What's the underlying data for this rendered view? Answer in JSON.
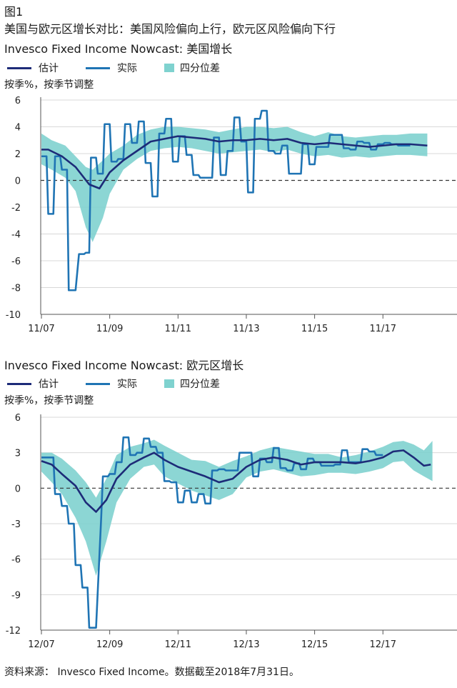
{
  "figure_label": "图1",
  "figure_title": "美国与欧元区增长对比：美国风险偏向上行，欧元区风险偏向下行",
  "colors": {
    "estimate": "#1d2b78",
    "actual": "#1f74b4",
    "band": "#7fd2cf",
    "grid": "#d8d8d8",
    "zero": "#333333"
  },
  "legend": {
    "estimate": "估计",
    "actual": "实际",
    "band": "四分位差"
  },
  "source": "资料来源： Invesco Fixed Income。数据截至2018年7月31日。",
  "chart_data": [
    {
      "type": "line",
      "title": "Invesco Fixed Income Nowcast: 美国增长",
      "ylabel": "按季%，按季节调整",
      "ylim": [
        -10,
        6
      ],
      "yticks": [
        6,
        4,
        2,
        0,
        -2,
        -4,
        -6,
        -8,
        -10
      ],
      "xlim": [
        2007.0,
        2018.5
      ],
      "xticks": [
        {
          "x": 2007.0,
          "label": "11/07"
        },
        {
          "x": 2009.0,
          "label": "11/09"
        },
        {
          "x": 2011.0,
          "label": "11/11"
        },
        {
          "x": 2013.0,
          "label": "11/13"
        },
        {
          "x": 2015.0,
          "label": "11/15"
        },
        {
          "x": 2017.0,
          "label": "11/17"
        }
      ],
      "series": [
        {
          "name": "估计",
          "key": "estimate",
          "x": [
            2007.0,
            2007.2,
            2007.6,
            2008.0,
            2008.4,
            2008.7,
            2009.0,
            2009.4,
            2009.8,
            2010.2,
            2010.6,
            2011.0,
            2011.4,
            2011.8,
            2012.2,
            2012.6,
            2013.0,
            2013.4,
            2013.8,
            2014.2,
            2014.6,
            2015.0,
            2015.4,
            2015.8,
            2016.2,
            2016.6,
            2017.0,
            2017.4,
            2017.8,
            2018.3
          ],
          "y": [
            2.3,
            2.3,
            1.8,
            1.0,
            -0.3,
            -0.6,
            0.6,
            1.5,
            2.2,
            2.9,
            3.1,
            3.3,
            3.2,
            3.1,
            2.9,
            3.0,
            3.0,
            3.1,
            3.0,
            3.1,
            2.8,
            2.7,
            2.8,
            2.7,
            2.6,
            2.5,
            2.6,
            2.7,
            2.7,
            2.6
          ]
        },
        {
          "name": "实际",
          "key": "actual",
          "x": [
            2007.0,
            2007.15,
            2007.2,
            2007.35,
            2007.4,
            2007.55,
            2007.6,
            2007.75,
            2007.8,
            2008.0,
            2008.1,
            2008.25,
            2008.3,
            2008.4,
            2008.45,
            2008.6,
            2008.65,
            2008.8,
            2008.85,
            2009.0,
            2009.05,
            2009.2,
            2009.25,
            2009.4,
            2009.45,
            2009.6,
            2009.65,
            2009.8,
            2009.85,
            2010.0,
            2010.05,
            2010.2,
            2010.25,
            2010.4,
            2010.45,
            2010.6,
            2010.65,
            2010.8,
            2010.85,
            2011.0,
            2011.05,
            2011.2,
            2011.25,
            2011.4,
            2011.45,
            2011.6,
            2011.65,
            2011.8,
            2011.85,
            2012.0,
            2012.05,
            2012.2,
            2012.25,
            2012.4,
            2012.45,
            2012.6,
            2012.65,
            2012.8,
            2012.85,
            2013.0,
            2013.05,
            2013.2,
            2013.25,
            2013.4,
            2013.45,
            2013.6,
            2013.65,
            2013.8,
            2013.85,
            2014.0,
            2014.05,
            2014.2,
            2014.25,
            2014.4,
            2014.45,
            2014.6,
            2014.65,
            2014.8,
            2014.85,
            2015.0,
            2015.05,
            2015.2,
            2015.25,
            2015.4,
            2015.45,
            2015.6,
            2015.65,
            2015.8,
            2015.85,
            2016.0,
            2016.05,
            2016.2,
            2016.25,
            2016.4,
            2016.45,
            2016.6,
            2016.65,
            2016.8,
            2016.85,
            2017.0,
            2017.05,
            2017.2,
            2017.25,
            2017.4,
            2017.45,
            2017.6,
            2017.65,
            2017.8
          ],
          "y": [
            1.8,
            1.8,
            -2.5,
            -2.5,
            1.8,
            1.8,
            0.8,
            0.8,
            -8.2,
            -8.2,
            -5.5,
            -5.5,
            -5.4,
            -5.4,
            1.7,
            1.7,
            0.5,
            0.5,
            4.2,
            4.2,
            1.4,
            1.4,
            1.6,
            1.6,
            4.2,
            4.2,
            2.8,
            2.8,
            4.4,
            4.4,
            1.3,
            1.3,
            -1.2,
            -1.2,
            3.5,
            3.5,
            4.6,
            4.6,
            1.4,
            1.4,
            3.3,
            3.3,
            1.9,
            1.9,
            0.4,
            0.4,
            0.2,
            0.2,
            0.2,
            0.2,
            3.2,
            3.2,
            0.4,
            0.4,
            2.2,
            2.2,
            4.7,
            4.7,
            2.9,
            2.9,
            -0.9,
            -0.9,
            4.6,
            4.6,
            5.2,
            5.2,
            2.2,
            2.2,
            2.0,
            2.0,
            2.6,
            2.6,
            0.5,
            0.5,
            0.5,
            0.5,
            2.7,
            2.7,
            1.2,
            1.2,
            2.5,
            2.5,
            2.5,
            2.5,
            3.4,
            3.4,
            3.4,
            3.4,
            2.4,
            2.4,
            2.3,
            2.3,
            2.9,
            2.9,
            2.8,
            2.8,
            2.3,
            2.3,
            2.7,
            2.7,
            2.8,
            2.8,
            2.7,
            2.7,
            2.6,
            2.6,
            2.6,
            2.6
          ]
        },
        {
          "name": "四分位差",
          "key": "band",
          "x": [
            2007.0,
            2007.3,
            2007.7,
            2008.0,
            2008.3,
            2008.5,
            2008.8,
            2009.0,
            2009.4,
            2009.8,
            2010.2,
            2010.6,
            2011.0,
            2011.4,
            2011.8,
            2012.2,
            2012.6,
            2013.0,
            2013.4,
            2013.8,
            2014.2,
            2014.6,
            2015.0,
            2015.4,
            2015.8,
            2016.2,
            2016.6,
            2017.0,
            2017.4,
            2017.8,
            2018.3
          ],
          "upper": [
            3.5,
            3.0,
            2.6,
            1.8,
            1.0,
            0.8,
            1.5,
            2.0,
            2.6,
            3.4,
            3.8,
            4.0,
            4.0,
            3.9,
            3.8,
            3.6,
            3.8,
            4.0,
            4.0,
            3.9,
            4.0,
            3.6,
            3.3,
            3.6,
            3.3,
            3.2,
            3.3,
            3.4,
            3.4,
            3.5,
            3.5
          ],
          "lower": [
            1.2,
            0.8,
            0.2,
            -0.8,
            -3.5,
            -4.6,
            -2.8,
            -1.0,
            0.8,
            1.6,
            2.2,
            2.4,
            2.5,
            2.4,
            2.2,
            2.0,
            2.1,
            2.2,
            2.3,
            2.1,
            2.3,
            2.0,
            1.8,
            1.9,
            1.7,
            1.8,
            1.7,
            1.8,
            1.9,
            1.9,
            1.8
          ]
        }
      ]
    },
    {
      "type": "line",
      "title": "Invesco Fixed Income Nowcast: 欧元区增长",
      "ylabel": "按季%，按季节调整",
      "ylim": [
        -12,
        6
      ],
      "yticks": [
        6,
        3,
        0,
        -3,
        -6,
        -9,
        -12
      ],
      "xlim": [
        2007.0,
        2018.5
      ],
      "xticks": [
        {
          "x": 2007.0,
          "label": "12/07"
        },
        {
          "x": 2009.0,
          "label": "12/09"
        },
        {
          "x": 2011.0,
          "label": "12/11"
        },
        {
          "x": 2013.0,
          "label": "12/13"
        },
        {
          "x": 2015.0,
          "label": "12/15"
        },
        {
          "x": 2017.0,
          "label": "12/17"
        }
      ],
      "series": [
        {
          "name": "估计",
          "key": "estimate",
          "x": [
            2007.0,
            2007.3,
            2007.6,
            2008.0,
            2008.3,
            2008.6,
            2008.9,
            2009.2,
            2009.6,
            2010.0,
            2010.3,
            2010.6,
            2011.0,
            2011.4,
            2011.8,
            2012.2,
            2012.6,
            2013.0,
            2013.4,
            2013.8,
            2014.2,
            2014.6,
            2015.0,
            2015.4,
            2015.8,
            2016.2,
            2016.6,
            2017.0,
            2017.3,
            2017.6,
            2017.9,
            2018.2,
            2018.4
          ],
          "y": [
            2.3,
            2.0,
            1.2,
            0.2,
            -1.2,
            -2.0,
            -1.0,
            0.8,
            2.0,
            2.6,
            3.0,
            2.4,
            1.8,
            1.4,
            1.0,
            0.5,
            0.8,
            1.8,
            2.4,
            2.6,
            2.4,
            2.0,
            2.2,
            2.2,
            2.2,
            2.1,
            2.3,
            2.6,
            3.1,
            3.2,
            2.6,
            1.9,
            2.0
          ]
        },
        {
          "name": "实际",
          "key": "actual",
          "x": [
            2007.0,
            2007.15,
            2007.2,
            2007.35,
            2007.4,
            2007.55,
            2007.6,
            2007.75,
            2007.8,
            2007.95,
            2008.0,
            2008.15,
            2008.2,
            2008.35,
            2008.4,
            2008.55,
            2008.6,
            2008.75,
            2008.8,
            2008.95,
            2009.0,
            2009.15,
            2009.2,
            2009.35,
            2009.4,
            2009.55,
            2009.6,
            2009.75,
            2009.8,
            2009.95,
            2010.0,
            2010.15,
            2010.2,
            2010.35,
            2010.4,
            2010.55,
            2010.6,
            2010.75,
            2010.8,
            2010.95,
            2011.0,
            2011.15,
            2011.2,
            2011.35,
            2011.4,
            2011.55,
            2011.6,
            2011.75,
            2011.8,
            2011.95,
            2012.0,
            2012.15,
            2012.2,
            2012.35,
            2012.4,
            2012.55,
            2012.6,
            2012.75,
            2012.8,
            2012.95,
            2013.0,
            2013.15,
            2013.2,
            2013.35,
            2013.4,
            2013.55,
            2013.6,
            2013.75,
            2013.8,
            2013.95,
            2014.0,
            2014.15,
            2014.2,
            2014.35,
            2014.4,
            2014.55,
            2014.6,
            2014.75,
            2014.8,
            2014.95,
            2015.0,
            2015.15,
            2015.2,
            2015.35,
            2015.4,
            2015.55,
            2015.6,
            2015.75,
            2015.8,
            2015.95,
            2016.0,
            2016.15,
            2016.2,
            2016.35,
            2016.4,
            2016.55,
            2016.6,
            2016.75,
            2016.8,
            2016.95,
            2017.0
          ],
          "y": [
            2.6,
            2.6,
            2.6,
            2.6,
            -0.5,
            -0.5,
            -1.5,
            -1.5,
            -3.0,
            -3.0,
            -6.5,
            -6.5,
            -8.4,
            -8.4,
            -11.8,
            -11.8,
            -11.8,
            -2.5,
            1.0,
            1.0,
            1.2,
            1.2,
            2.2,
            2.2,
            4.3,
            4.3,
            2.8,
            2.8,
            3.0,
            3.0,
            4.2,
            4.2,
            3.5,
            3.5,
            3.0,
            3.0,
            0.6,
            0.6,
            0.5,
            0.5,
            -1.2,
            -1.2,
            -0.2,
            -0.2,
            -1.2,
            -1.2,
            -0.5,
            -0.5,
            -1.3,
            -1.3,
            1.5,
            1.5,
            1.6,
            1.6,
            1.5,
            1.5,
            1.5,
            1.5,
            3.0,
            3.0,
            3.0,
            3.0,
            1.0,
            1.0,
            2.5,
            2.5,
            2.2,
            2.2,
            3.4,
            3.4,
            1.7,
            1.7,
            1.5,
            1.5,
            2.1,
            2.1,
            1.6,
            1.6,
            2.5,
            2.5,
            2.2,
            2.2,
            1.9,
            1.9,
            1.9,
            1.9,
            2.0,
            2.0,
            3.2,
            3.2,
            2.2,
            2.2,
            2.2,
            2.2,
            3.3,
            3.3,
            3.1,
            3.1,
            2.8,
            2.8,
            2.8
          ]
        },
        {
          "name": "四分位差",
          "key": "band",
          "x": [
            2007.0,
            2007.3,
            2007.6,
            2008.0,
            2008.3,
            2008.6,
            2008.9,
            2009.2,
            2009.6,
            2010.0,
            2010.3,
            2010.6,
            2011.0,
            2011.4,
            2011.8,
            2012.2,
            2012.6,
            2013.0,
            2013.4,
            2013.8,
            2014.2,
            2014.6,
            2015.0,
            2015.4,
            2015.8,
            2016.2,
            2016.6,
            2017.0,
            2017.3,
            2017.6,
            2017.9,
            2018.2,
            2018.45
          ],
          "upper": [
            3.0,
            3.0,
            2.5,
            1.5,
            0.5,
            -0.8,
            0.8,
            2.8,
            3.5,
            3.8,
            4.1,
            3.6,
            3.0,
            2.4,
            2.3,
            1.8,
            2.3,
            2.7,
            3.2,
            3.5,
            3.3,
            3.1,
            2.9,
            2.9,
            2.6,
            2.8,
            3.1,
            3.5,
            3.9,
            4.0,
            3.7,
            3.2,
            4.0
          ],
          "lower": [
            1.4,
            0.5,
            -0.5,
            -2.5,
            -4.5,
            -7.4,
            -4.5,
            -1.2,
            0.8,
            1.8,
            2.0,
            1.0,
            0.4,
            -0.2,
            -0.6,
            -1.0,
            -0.5,
            0.9,
            1.4,
            1.6,
            1.3,
            1.0,
            1.1,
            1.3,
            1.3,
            1.2,
            1.4,
            1.7,
            2.2,
            2.3,
            1.5,
            1.0,
            0.6
          ]
        }
      ]
    }
  ]
}
